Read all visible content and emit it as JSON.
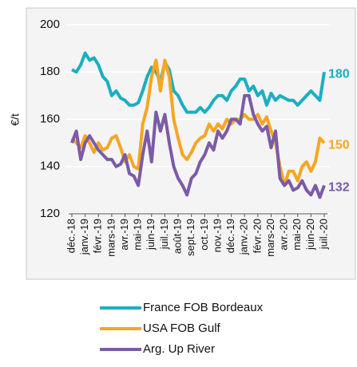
{
  "chart_data": {
    "type": "line",
    "y_label": "€/t",
    "categories": [
      "déc.-18",
      null,
      null,
      "janv.-19",
      null,
      null,
      "févr.-19",
      null,
      null,
      "mars-19",
      null,
      null,
      "avr.-19",
      null,
      null,
      "mai-19",
      null,
      null,
      "juin-19",
      null,
      null,
      "juil.-19",
      null,
      null,
      "août-19",
      null,
      null,
      "sept.-19",
      null,
      null,
      "oct.-19",
      null,
      null,
      "nov.-19",
      null,
      null,
      "déc.-19",
      null,
      null,
      "janv.-20",
      null,
      null,
      "févr.-20",
      null,
      null,
      "mars-20",
      null,
      null,
      "avr.-20",
      null,
      null,
      "mai-20",
      null,
      null,
      "juin-20",
      null,
      null,
      "juil.-20"
    ],
    "series": [
      {
        "name": "France FOB Bordeaux",
        "color": "#1aafc1",
        "values": [
          181,
          180,
          183,
          188,
          185,
          186,
          183,
          178,
          176,
          170,
          172,
          169,
          168,
          166,
          166,
          167,
          172,
          178,
          182,
          180,
          176,
          184,
          181,
          172,
          170,
          166,
          163,
          163,
          163,
          165,
          163,
          165,
          168,
          170,
          170,
          168,
          172,
          174,
          177,
          177,
          172,
          174,
          170,
          172,
          166,
          171,
          168,
          170,
          169,
          168,
          168,
          166,
          168,
          170,
          172,
          170,
          168,
          180
        ]
      },
      {
        "name": "USA FOB Gulf",
        "color": "#f5a623",
        "values": [
          152,
          150,
          148,
          153,
          150,
          146,
          150,
          147,
          148,
          152,
          153,
          148,
          142,
          145,
          140,
          139,
          158,
          165,
          178,
          185,
          172,
          185,
          178,
          160,
          152,
          145,
          143,
          146,
          150,
          152,
          153,
          158,
          155,
          158,
          156,
          160,
          158,
          160,
          160,
          162,
          160,
          160,
          162,
          158,
          161,
          155,
          150,
          140,
          132,
          138,
          138,
          134,
          140,
          142,
          138,
          142,
          152,
          150
        ]
      },
      {
        "name": "Arg. Up River",
        "color": "#7b5ba6",
        "values": [
          150,
          155,
          143,
          150,
          153,
          150,
          147,
          145,
          143,
          143,
          140,
          141,
          145,
          137,
          136,
          132,
          145,
          155,
          142,
          163,
          155,
          162,
          150,
          140,
          135,
          132,
          128,
          135,
          137,
          142,
          145,
          150,
          147,
          155,
          152,
          155,
          160,
          160,
          158,
          170,
          170,
          162,
          158,
          155,
          157,
          148,
          155,
          135,
          132,
          134,
          130,
          131,
          134,
          130,
          128,
          132,
          127,
          132
        ]
      }
    ],
    "ylim": [
      120,
      200
    ],
    "yticks": [
      120,
      140,
      160,
      180,
      200
    ],
    "grid": true,
    "legend": "bottom"
  }
}
